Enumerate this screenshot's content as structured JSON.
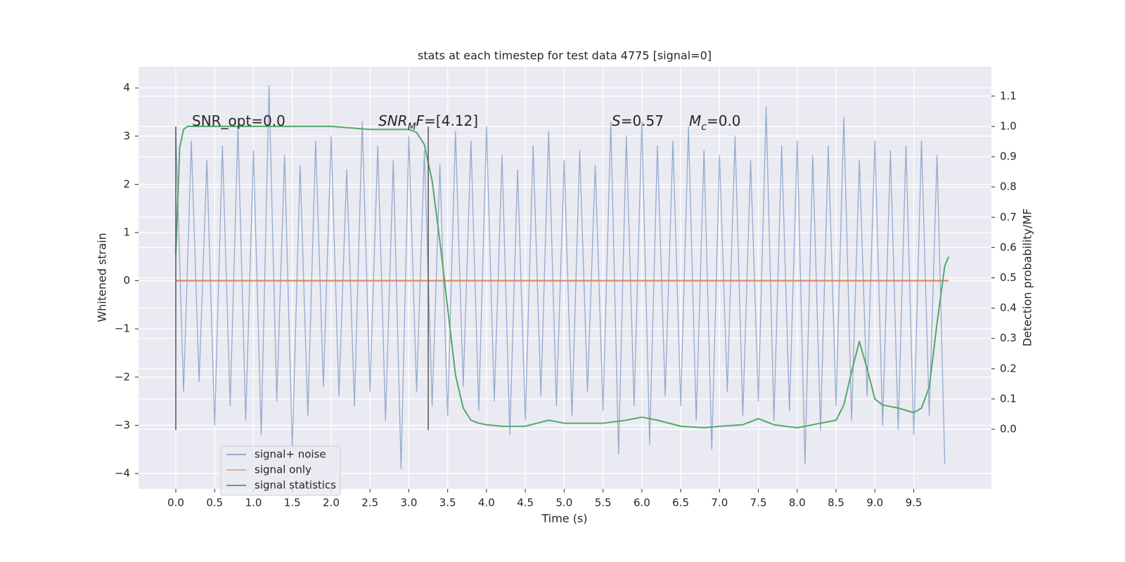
{
  "chart_data": {
    "type": "line",
    "title": "stats at each timestep for test data 4775 [signal=0]",
    "xlabel": "Time (s)",
    "ylabel": "Whitened strain",
    "y2label": "Detection probability/MF",
    "xlim": [
      -0.48,
      10.5
    ],
    "ylim": [
      -4.32,
      4.44
    ],
    "y2lim": [
      -0.197,
      1.197
    ],
    "xticks": [
      {
        "value": 0,
        "label": "0.0"
      },
      {
        "value": 0.5,
        "label": "0.5"
      },
      {
        "value": 1,
        "label": "1.0"
      },
      {
        "value": 1.5,
        "label": "1.5"
      },
      {
        "value": 2,
        "label": "2.0"
      },
      {
        "value": 2.5,
        "label": "2.5"
      },
      {
        "value": 3,
        "label": "3.0"
      },
      {
        "value": 3.5,
        "label": "3.5"
      },
      {
        "value": 4,
        "label": "4.0"
      },
      {
        "value": 4.5,
        "label": "4.5"
      },
      {
        "value": 5,
        "label": "5.0"
      },
      {
        "value": 5.5,
        "label": "5.5"
      },
      {
        "value": 6,
        "label": "6.0"
      },
      {
        "value": 6.5,
        "label": "6.5"
      },
      {
        "value": 7,
        "label": "7.0"
      },
      {
        "value": 7.5,
        "label": "7.5"
      },
      {
        "value": 8,
        "label": "8.0"
      },
      {
        "value": 8.5,
        "label": "8.5"
      },
      {
        "value": 9,
        "label": "9.0"
      },
      {
        "value": 9.5,
        "label": "9.5"
      }
    ],
    "yticks": [
      {
        "value": -4,
        "label": "−4"
      },
      {
        "value": -3,
        "label": "−3"
      },
      {
        "value": -2,
        "label": "−2"
      },
      {
        "value": -1,
        "label": "−1"
      },
      0,
      1,
      2,
      3,
      4
    ],
    "y2ticks": [
      {
        "value": 0,
        "label": "0.0"
      },
      {
        "value": 0.1,
        "label": "0.1"
      },
      {
        "value": 0.2,
        "label": "0.2"
      },
      {
        "value": 0.3,
        "label": "0.3"
      },
      {
        "value": 0.4,
        "label": "0.4"
      },
      {
        "value": 0.5,
        "label": "0.5"
      },
      {
        "value": 0.6,
        "label": "0.6"
      },
      {
        "value": 0.7,
        "label": "0.7"
      },
      {
        "value": 0.8,
        "label": "0.8"
      },
      {
        "value": 0.9,
        "label": "0.9"
      },
      {
        "value": 1,
        "label": "1.0"
      },
      {
        "value": 1.1,
        "label": "1.1"
      }
    ],
    "grid": true,
    "legend": "lower left",
    "series": [
      {
        "name": "signal+ noise",
        "color": "#4c72b0",
        "x": [
          0,
          0.1,
          0.2,
          0.3,
          0.4,
          0.5,
          0.6,
          0.7,
          0.8,
          0.9,
          1,
          1.1,
          1.2,
          1.3,
          1.4,
          1.5,
          1.6,
          1.7,
          1.8,
          1.9,
          2,
          2.1,
          2.2,
          2.3,
          2.4,
          2.5,
          2.6,
          2.7,
          2.8,
          2.9,
          3,
          3.1,
          3.2,
          3.3,
          3.4,
          3.5,
          3.6,
          3.7,
          3.8,
          3.9,
          4,
          4.1,
          4.2,
          4.3,
          4.4,
          4.5,
          4.6,
          4.7,
          4.8,
          4.9,
          5,
          5.1,
          5.2,
          5.3,
          5.4,
          5.5,
          5.6,
          5.7,
          5.8,
          5.9,
          6,
          6.1,
          6.2,
          6.3,
          6.4,
          6.5,
          6.6,
          6.7,
          6.8,
          6.9,
          7,
          7.1,
          7.2,
          7.3,
          7.4,
          7.5,
          7.6,
          7.7,
          7.8,
          7.9,
          8,
          8.1,
          8.2,
          8.3,
          8.4,
          8.5,
          8.6,
          8.7,
          8.8,
          8.9,
          9,
          9.1,
          9.2,
          9.3,
          9.4,
          9.5,
          9.6,
          9.7,
          9.8,
          9.9
        ],
        "values": [
          3.1,
          -2.3,
          2.9,
          -2.1,
          2.5,
          -3.0,
          2.8,
          -2.6,
          3.2,
          -2.9,
          2.7,
          -3.2,
          4.05,
          -2.5,
          2.6,
          -3.5,
          2.4,
          -2.8,
          2.9,
          -2.2,
          3.0,
          -2.4,
          2.3,
          -2.6,
          3.3,
          -2.3,
          2.8,
          -2.9,
          2.5,
          -3.9,
          3.0,
          -2.3,
          2.7,
          -2.6,
          2.4,
          -2.8,
          3.1,
          -2.2,
          2.9,
          -2.7,
          3.2,
          -2.5,
          2.6,
          -3.2,
          2.3,
          -2.9,
          2.8,
          -2.4,
          3.1,
          -2.6,
          2.5,
          -2.8,
          2.7,
          -2.3,
          2.4,
          -2.7,
          3.3,
          -3.6,
          3.0,
          -2.6,
          3.3,
          -3.4,
          2.8,
          -2.4,
          2.9,
          -2.6,
          3.2,
          -2.9,
          2.7,
          -3.5,
          2.6,
          -2.3,
          3.0,
          -2.8,
          2.5,
          -2.5,
          3.6,
          -2.9,
          2.8,
          -2.7,
          2.9,
          -3.8,
          2.6,
          -3.1,
          2.8,
          -2.6,
          3.4,
          -2.9,
          2.5,
          -2.4,
          2.9,
          -3.0,
          2.7,
          -3.1,
          2.8,
          -3.2,
          2.9,
          -2.8,
          2.6,
          -3.8
        ]
      },
      {
        "name": "signal only",
        "color": "#dd8452",
        "x": [
          0,
          9.95
        ],
        "values": [
          0,
          0
        ]
      },
      {
        "name": "signal statistics",
        "color": "#55a868",
        "axis": "y2",
        "x": [
          0,
          0.05,
          0.1,
          0.15,
          0.3,
          0.5,
          1,
          2,
          2.5,
          3,
          3.1,
          3.2,
          3.3,
          3.4,
          3.5,
          3.6,
          3.7,
          3.8,
          3.9,
          4.0,
          4.2,
          4.5,
          4.8,
          5.0,
          5.5,
          5.8,
          6.0,
          6.2,
          6.5,
          6.8,
          7.0,
          7.3,
          7.5,
          7.7,
          8.0,
          8.3,
          8.5,
          8.6,
          8.7,
          8.8,
          8.9,
          9.0,
          9.1,
          9.3,
          9.5,
          9.6,
          9.7,
          9.8,
          9.9,
          9.95
        ],
        "values": [
          0.58,
          0.93,
          0.99,
          1.0,
          1.0,
          1.0,
          1.0,
          1.0,
          0.99,
          0.99,
          0.98,
          0.94,
          0.82,
          0.62,
          0.4,
          0.18,
          0.07,
          0.03,
          0.02,
          0.015,
          0.01,
          0.01,
          0.03,
          0.02,
          0.02,
          0.03,
          0.04,
          0.03,
          0.01,
          0.005,
          0.01,
          0.015,
          0.035,
          0.015,
          0.005,
          0.02,
          0.03,
          0.08,
          0.19,
          0.29,
          0.2,
          0.1,
          0.08,
          0.07,
          0.055,
          0.07,
          0.14,
          0.35,
          0.54,
          0.57
        ]
      }
    ],
    "vlines": {
      "x": [
        0,
        3.25
      ],
      "ymin": -3.1,
      "ymax": 3.2,
      "color": "#555555"
    },
    "annotations": [
      {
        "parts": [
          {
            "t": "SNR_opt=0.0",
            "style": "normal"
          }
        ]
      },
      {
        "parts": [
          {
            "t": "SNR",
            "style": "italic"
          },
          {
            "t": "M",
            "style": "sub"
          },
          {
            "t": "F",
            "style": "italic"
          },
          {
            "t": "=[4.12]",
            "style": "normal"
          }
        ]
      },
      {
        "parts": [
          {
            "t": "S",
            "style": "italic"
          },
          {
            "t": "=0.57",
            "style": "normal"
          }
        ]
      },
      {
        "parts": [
          {
            "t": "M",
            "style": "italic"
          },
          {
            "t": "c",
            "style": "sub"
          },
          {
            "t": "=0.0",
            "style": "normal"
          }
        ]
      }
    ]
  }
}
